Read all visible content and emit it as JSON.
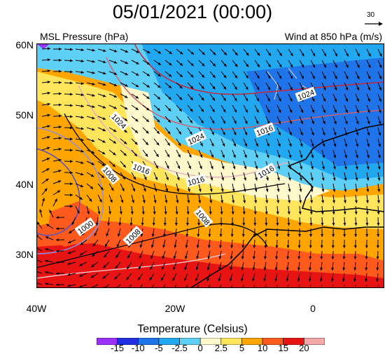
{
  "title": "05/01/2021 (00:00)",
  "left_subtitle": "MSL Pressure (hPa)",
  "right_subtitle": "Wind at 850 hPa (m/s)",
  "ref_vector_label": "30",
  "lat_labels": [
    "60N",
    "50N",
    "40N",
    "30N"
  ],
  "lon_labels": [
    "40W",
    "20W",
    "0"
  ],
  "isobar_labels": [
    "1024",
    "1024",
    "1016",
    "1024",
    "1008",
    "1016",
    "1016",
    "1016",
    "1008",
    "1000",
    "1008"
  ],
  "colorbar": {
    "title": "Temperature (Celsius)",
    "labels": [
      "-15",
      "-10",
      "-5",
      "-2.5",
      "0",
      "2.5",
      "5",
      "10",
      "15",
      "20"
    ],
    "colors": [
      "#9b30ff",
      "#2030e0",
      "#1e74e8",
      "#22a8f0",
      "#5fd0f5",
      "#fff8cc",
      "#ffe55c",
      "#ffa500",
      "#ff5a1e",
      "#e81414",
      "#f5a8a8"
    ]
  },
  "colors": {
    "land_outline": "#000000",
    "isobar_high": "#c8283c",
    "isobar_low": "#5050c8"
  }
}
